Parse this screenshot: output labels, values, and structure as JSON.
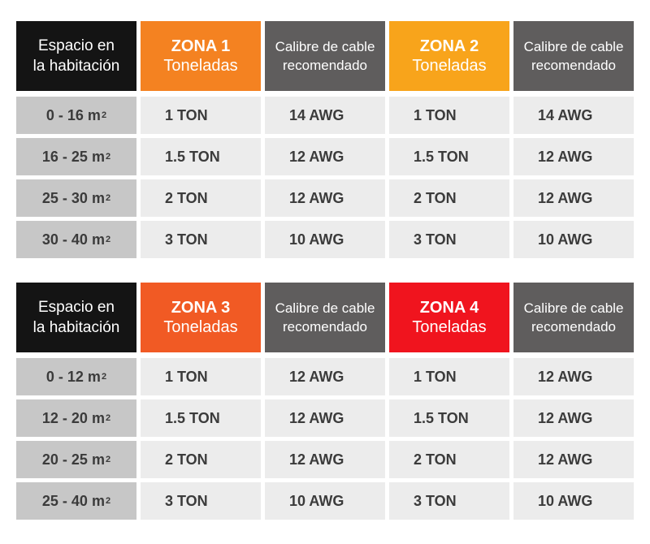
{
  "tables": [
    {
      "header": {
        "space": [
          "Espacio en",
          "la habitación"
        ],
        "zone_a": {
          "zone": "ZONA 1",
          "unit": "Toneladas",
          "color": "#f48221"
        },
        "cable_a": [
          "Calibre de cable",
          "recomendado"
        ],
        "zone_b": {
          "zone": "ZONA 2",
          "unit": "Toneladas",
          "color": "#f8a41b"
        },
        "cable_b": [
          "Calibre de cable",
          "recomendado"
        ]
      },
      "rows": [
        {
          "space": "0 - 16 m",
          "sup": "2",
          "ton_a": "1 TON",
          "awg_a": "14 AWG",
          "ton_b": "1 TON",
          "awg_b": "14 AWG"
        },
        {
          "space": "16 - 25 m",
          "sup": "2",
          "ton_a": "1.5 TON",
          "awg_a": "12 AWG",
          "ton_b": "1.5 TON",
          "awg_b": "12 AWG"
        },
        {
          "space": "25 - 30 m",
          "sup": "2",
          "ton_a": "2 TON",
          "awg_a": "12 AWG",
          "ton_b": "2 TON",
          "awg_b": "12 AWG"
        },
        {
          "space": "30 - 40 m",
          "sup": "2",
          "ton_a": "3 TON",
          "awg_a": "10 AWG",
          "ton_b": "3 TON",
          "awg_b": "10 AWG"
        }
      ]
    },
    {
      "header": {
        "space": [
          "Espacio en",
          "la habitación"
        ],
        "zone_a": {
          "zone": "ZONA 3",
          "unit": "Toneladas",
          "color": "#f15a24"
        },
        "cable_a": [
          "Calibre de cable",
          "recomendado"
        ],
        "zone_b": {
          "zone": "ZONA 4",
          "unit": "Toneladas",
          "color": "#f0141e"
        },
        "cable_b": [
          "Calibre de cable",
          "recomendado"
        ]
      },
      "rows": [
        {
          "space": "0 - 12 m",
          "sup": "2",
          "ton_a": "1 TON",
          "awg_a": "12 AWG",
          "ton_b": "1 TON",
          "awg_b": "12 AWG"
        },
        {
          "space": "12 - 20 m",
          "sup": "2",
          "ton_a": "1.5 TON",
          "awg_a": "12 AWG",
          "ton_b": "1.5 TON",
          "awg_b": "12 AWG"
        },
        {
          "space": "20 - 25 m",
          "sup": "2",
          "ton_a": "2 TON",
          "awg_a": "12 AWG",
          "ton_b": "2 TON",
          "awg_b": "12 AWG"
        },
        {
          "space": "25 - 40 m",
          "sup": "2",
          "ton_a": "3 TON",
          "awg_a": "10 AWG",
          "ton_b": "3 TON",
          "awg_b": "10 AWG"
        }
      ]
    }
  ]
}
